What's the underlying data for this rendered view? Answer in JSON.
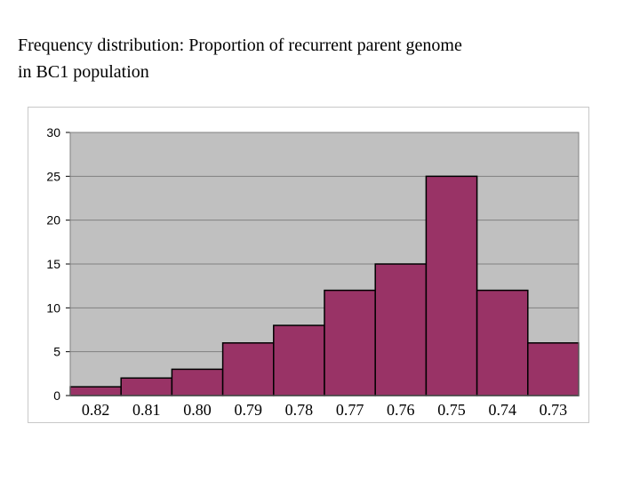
{
  "title": "Frequency distribution:  Proportion of recurrent parent genome\nin BC1 population",
  "colors": {
    "bar": "#993366",
    "plot_bg": "#c0c0c0",
    "grid": "#808080",
    "axis": "#000000"
  },
  "chart_data": {
    "type": "bar",
    "title": "Frequency distribution:  Proportion of recurrent parent genome in BC1 population",
    "xlabel": "",
    "ylabel": "",
    "categories": [
      "0.82",
      "0.81",
      "0.80",
      "0.79",
      "0.78",
      "0.77",
      "0.76",
      "0.75",
      "0.74",
      "0.73"
    ],
    "values": [
      1,
      2,
      3,
      6,
      8,
      12,
      15,
      25,
      12,
      6
    ],
    "ylim": [
      0,
      30
    ],
    "yticks": [
      0,
      5,
      10,
      15,
      20,
      25,
      30
    ],
    "grid": true,
    "legend": "none"
  }
}
